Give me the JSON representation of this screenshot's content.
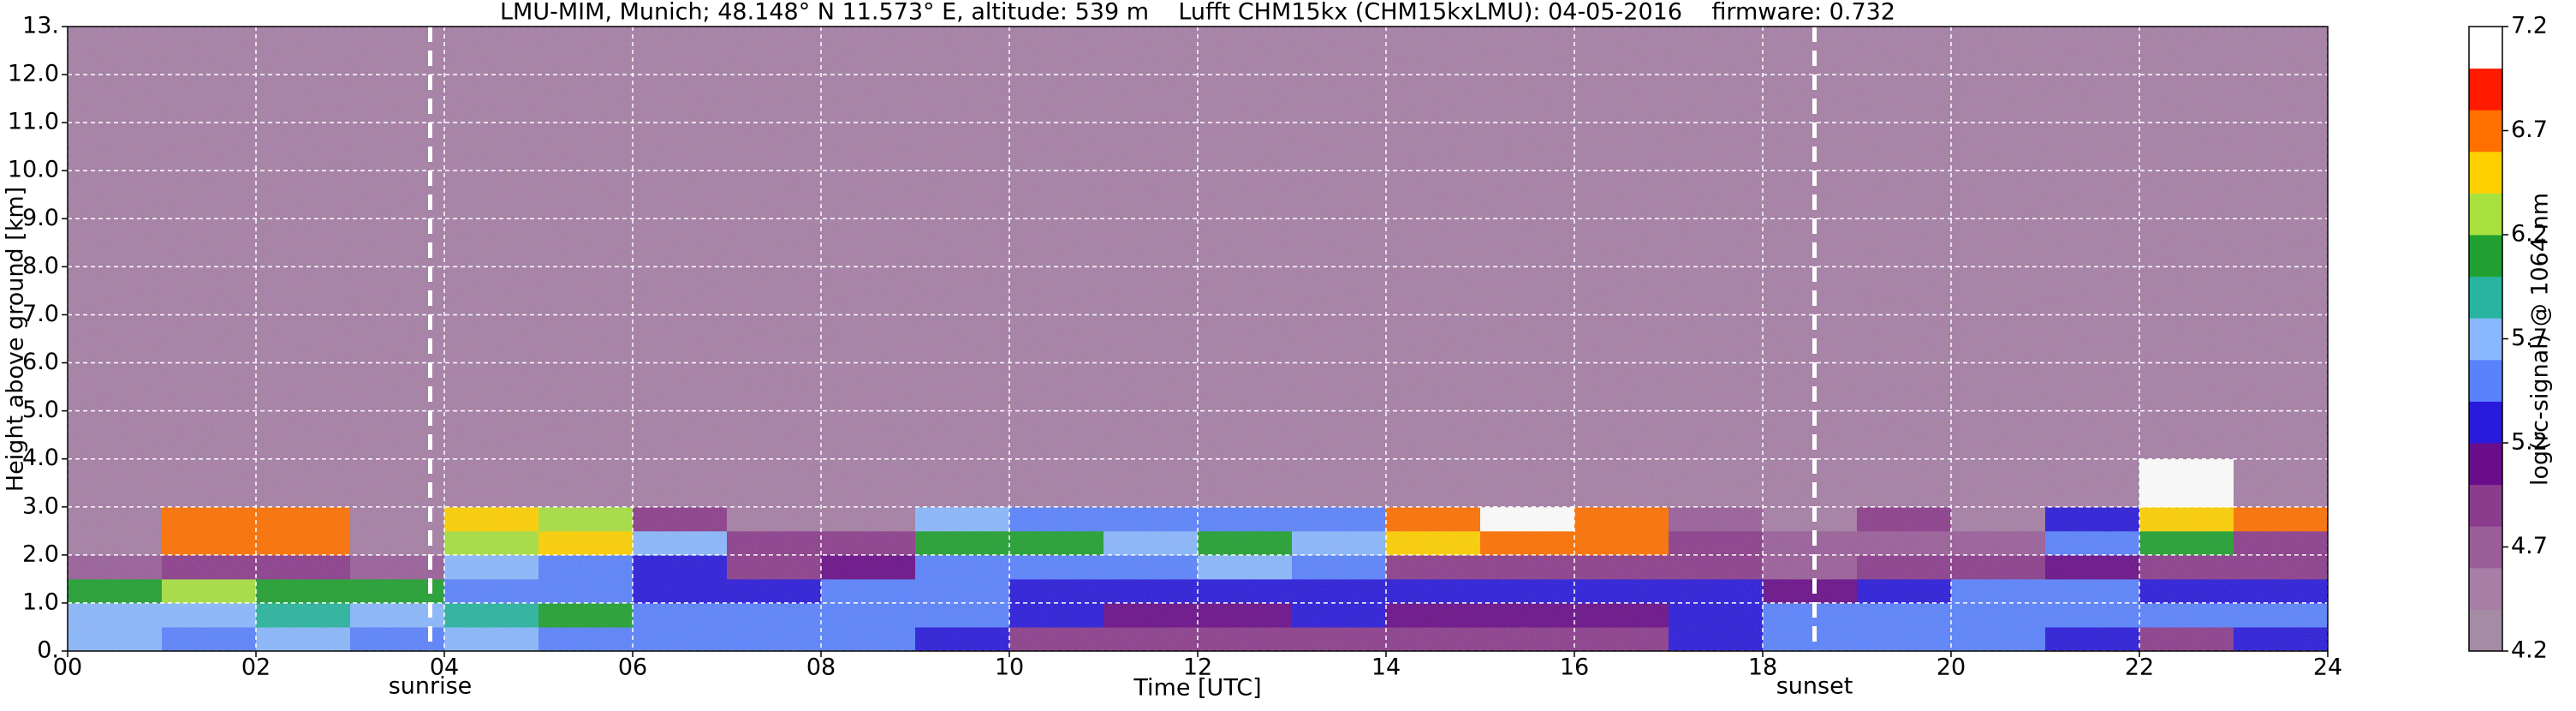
{
  "chart_data": {
    "type": "heatmap",
    "title": "LMU-MIM, Munich; 48.148° N 11.573° E, altitude: 539 m    Lufft CHM15kx (CHM15kxLMU): 04-05-2016    firmware: 0.732",
    "x_label": "Time [UTC]",
    "y_label": "Height above ground [km]",
    "colorbar_label": "log(rc-signal) @ 1064 nm",
    "x_bins": [
      0,
      1,
      2,
      3,
      4,
      5,
      6,
      7,
      8,
      9,
      10,
      11,
      12,
      13,
      14,
      15,
      16,
      17,
      18,
      19,
      20,
      21,
      22,
      23,
      24
    ],
    "y_bins": [
      0,
      0.5,
      1,
      1.5,
      2,
      2.5,
      3,
      4,
      13
    ],
    "values": [
      [
        5.7,
        5.6,
        5.7,
        5.6,
        5.7,
        5.6,
        5.6,
        5.5,
        5.5,
        5.2,
        5.0,
        5.0,
        4.9,
        5.0,
        5.0,
        5.0,
        4.9,
        5.3,
        5.5,
        5.5,
        5.4,
        5.3,
        5.0,
        5.3
      ],
      [
        5.7,
        5.8,
        5.9,
        5.8,
        5.9,
        6.0,
        5.6,
        5.5,
        5.5,
        5.4,
        5.2,
        5.1,
        5.1,
        5.2,
        5.1,
        5.1,
        5.1,
        5.3,
        5.5,
        5.6,
        5.6,
        5.5,
        5.4,
        5.6
      ],
      [
        6.0,
        6.2,
        6.1,
        6.0,
        5.5,
        5.4,
        5.3,
        5.3,
        5.4,
        5.4,
        5.3,
        5.3,
        5.3,
        5.3,
        5.3,
        5.2,
        5.3,
        5.2,
        5.1,
        5.3,
        5.5,
        5.5,
        5.3,
        5.3
      ],
      [
        4.8,
        5.0,
        5.0,
        4.8,
        5.8,
        5.4,
        5.2,
        5.0,
        5.1,
        5.6,
        5.5,
        5.6,
        5.8,
        5.4,
        5.0,
        5.0,
        5.0,
        4.9,
        4.8,
        4.9,
        4.9,
        5.1,
        5.0,
        4.9
      ],
      [
        4.5,
        6.8,
        6.8,
        4.6,
        6.2,
        6.6,
        5.8,
        4.9,
        4.9,
        6.0,
        6.0,
        5.8,
        6.0,
        5.8,
        6.6,
        6.8,
        6.8,
        5.0,
        4.8,
        4.8,
        4.8,
        5.4,
        6.0,
        5.0
      ],
      [
        4.5,
        6.8,
        6.8,
        4.5,
        6.6,
        6.2,
        5.0,
        4.6,
        4.6,
        5.8,
        5.6,
        5.5,
        5.5,
        5.4,
        6.8,
        7.1,
        6.8,
        4.8,
        4.6,
        5.0,
        4.6,
        5.2,
        6.6,
        6.8
      ],
      [
        4.5,
        4.5,
        4.5,
        4.5,
        4.5,
        4.5,
        4.5,
        4.5,
        4.5,
        4.5,
        4.5,
        4.5,
        4.5,
        4.5,
        4.5,
        4.6,
        4.5,
        4.5,
        4.5,
        4.5,
        4.5,
        4.5,
        7.1,
        4.6
      ],
      [
        4.5,
        4.5,
        4.5,
        4.5,
        4.5,
        4.5,
        4.5,
        4.5,
        4.5,
        4.5,
        4.5,
        4.5,
        4.5,
        4.5,
        4.5,
        4.5,
        4.5,
        4.5,
        4.5,
        4.5,
        4.5,
        4.5,
        4.5,
        4.5
      ]
    ],
    "xlim": [
      0,
      24
    ],
    "ylim": [
      0,
      13
    ],
    "xticks": [
      {
        "value": 0,
        "label": "00"
      },
      {
        "value": 2,
        "label": "02"
      },
      {
        "value": 4,
        "label": "04"
      },
      {
        "value": 6,
        "label": "06"
      },
      {
        "value": 8,
        "label": "08"
      },
      10,
      12,
      14,
      16,
      18,
      20,
      22,
      24
    ],
    "yticks": [
      {
        "value": 0,
        "label": "0."
      },
      {
        "value": 1,
        "label": "1.0"
      },
      {
        "value": 2,
        "label": "2.0"
      },
      {
        "value": 3,
        "label": "3.0"
      },
      {
        "value": 4,
        "label": "4.0"
      },
      {
        "value": 5,
        "label": "5.0"
      },
      {
        "value": 6,
        "label": "6.0"
      },
      {
        "value": 7,
        "label": "7.0"
      },
      {
        "value": 8,
        "label": "8.0"
      },
      {
        "value": 9,
        "label": "9.0"
      },
      {
        "value": 10,
        "label": "10.0"
      },
      {
        "value": 11,
        "label": "11.0"
      },
      {
        "value": 12,
        "label": "12.0"
      },
      {
        "value": 13,
        "label": "13."
      }
    ],
    "zlim": [
      4.2,
      7.2
    ],
    "zticks": [
      4.2,
      4.7,
      5.2,
      5.7,
      6.2,
      6.7,
      7.2
    ],
    "colors": [
      "#a48ca4",
      "#a67ea6",
      "#9a5e9a",
      "#8c3c8c",
      "#6a0d8a",
      "#2a1adb",
      "#5a82ff",
      "#8ab8ff",
      "#28b4a0",
      "#20a030",
      "#a8e040",
      "#ffd000",
      "#ff7000",
      "#ff1a00",
      "#ffffff"
    ],
    "grid": true,
    "annotations": [
      {
        "x": 3.85,
        "label": "sunrise"
      },
      {
        "x": 18.55,
        "label": "sunset"
      }
    ]
  }
}
